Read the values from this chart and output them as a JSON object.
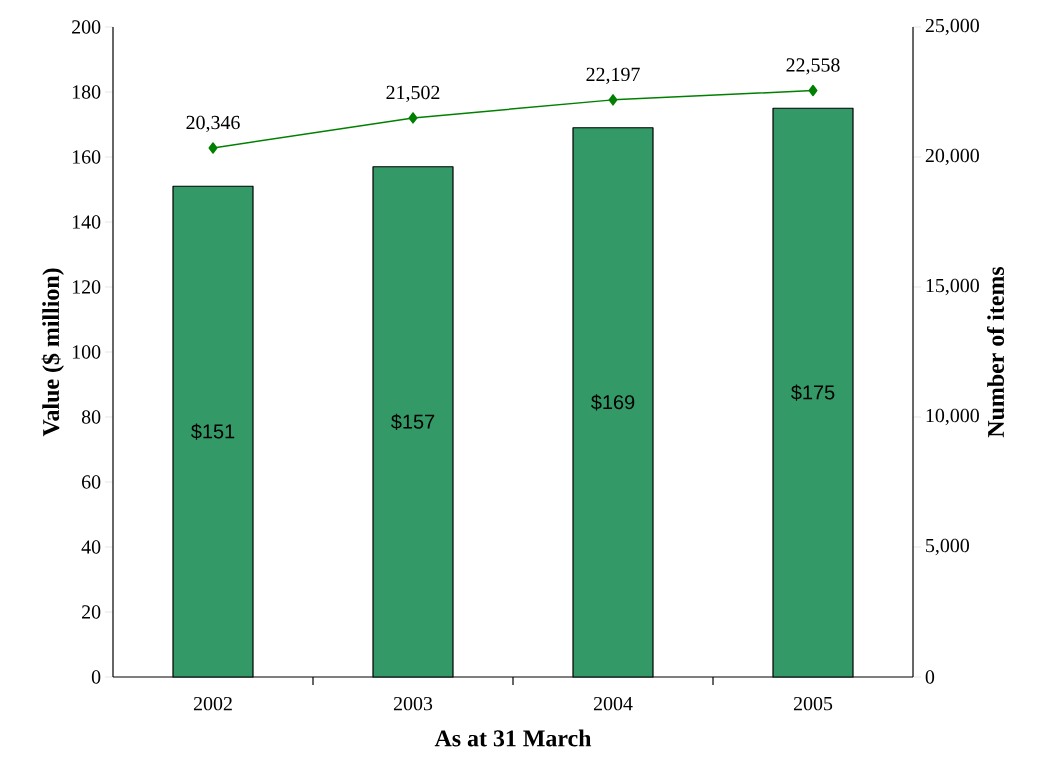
{
  "chart_data": {
    "type": "bar",
    "xlabel": "As at 31 March",
    "ylabel": "Value ($ million)",
    "y2label": "Number of items",
    "categories": [
      "2002",
      "2003",
      "2004",
      "2005"
    ],
    "series": [
      {
        "color": "#339966",
        "values": [
          151,
          157,
          169,
          175
        ],
        "value_labels": [
          "$151",
          "$157",
          "$169",
          "$175"
        ]
      },
      {
        "type": "line",
        "axis": "y2",
        "color": "#008000",
        "marker": "diamond",
        "values": [
          20346,
          21502,
          22197,
          22558
        ],
        "value_labels": [
          "20,346",
          "21,502",
          "22,197",
          "22,558"
        ]
      }
    ],
    "ylim": [
      0,
      200
    ],
    "yticks": [
      0,
      20,
      40,
      60,
      80,
      100,
      120,
      140,
      160,
      180,
      200
    ],
    "y2lim": [
      0,
      25000
    ],
    "y2ticks": [
      0,
      {
        "value": 5000,
        "label": "5,000"
      },
      {
        "value": 10000,
        "label": "10,000"
      },
      {
        "value": 15000,
        "label": "15,000"
      },
      {
        "value": 20000,
        "label": "20,000"
      },
      {
        "value": 25000,
        "label": "25,000"
      }
    ]
  }
}
